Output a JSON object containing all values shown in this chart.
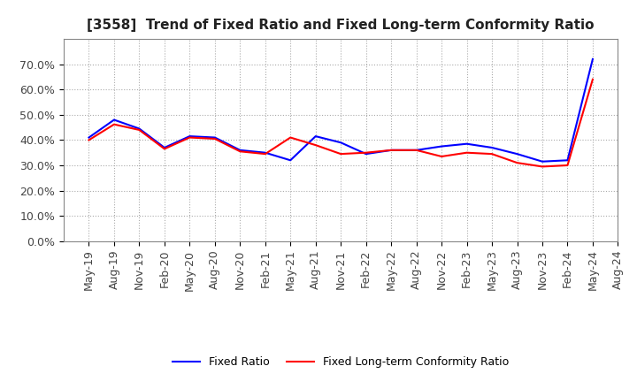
{
  "title": "[3558]  Trend of Fixed Ratio and Fixed Long-term Conformity Ratio",
  "x_labels": [
    "May-19",
    "Aug-19",
    "Nov-19",
    "Feb-20",
    "May-20",
    "Aug-20",
    "Nov-20",
    "Feb-21",
    "May-21",
    "Aug-21",
    "Nov-21",
    "Feb-22",
    "May-22",
    "Aug-22",
    "Nov-22",
    "Feb-23",
    "May-23",
    "Aug-23",
    "Nov-23",
    "Feb-24",
    "May-24",
    "Aug-24"
  ],
  "fixed_ratio": [
    0.41,
    0.48,
    0.445,
    0.37,
    0.415,
    0.41,
    0.36,
    0.35,
    0.32,
    0.415,
    0.39,
    0.345,
    0.36,
    0.36,
    0.375,
    0.385,
    0.37,
    0.345,
    0.315,
    0.32,
    0.72,
    null
  ],
  "fixed_lt_ratio": [
    0.4,
    0.462,
    0.44,
    0.365,
    0.41,
    0.405,
    0.355,
    0.345,
    0.41,
    0.38,
    0.345,
    0.35,
    0.36,
    0.36,
    0.335,
    0.35,
    0.345,
    0.31,
    0.295,
    0.3,
    0.64,
    null
  ],
  "ylim": [
    0.0,
    0.8
  ],
  "yticks": [
    0.0,
    0.1,
    0.2,
    0.3,
    0.4,
    0.5,
    0.6,
    0.7
  ],
  "fixed_ratio_color": "#0000FF",
  "fixed_lt_ratio_color": "#FF0000",
  "grid_color": "#aaaaaa",
  "background_color": "#FFFFFF",
  "legend_fixed_ratio": "Fixed Ratio",
  "legend_fixed_lt_ratio": "Fixed Long-term Conformity Ratio",
  "title_fontsize": 11,
  "tick_fontsize": 9,
  "legend_fontsize": 9
}
